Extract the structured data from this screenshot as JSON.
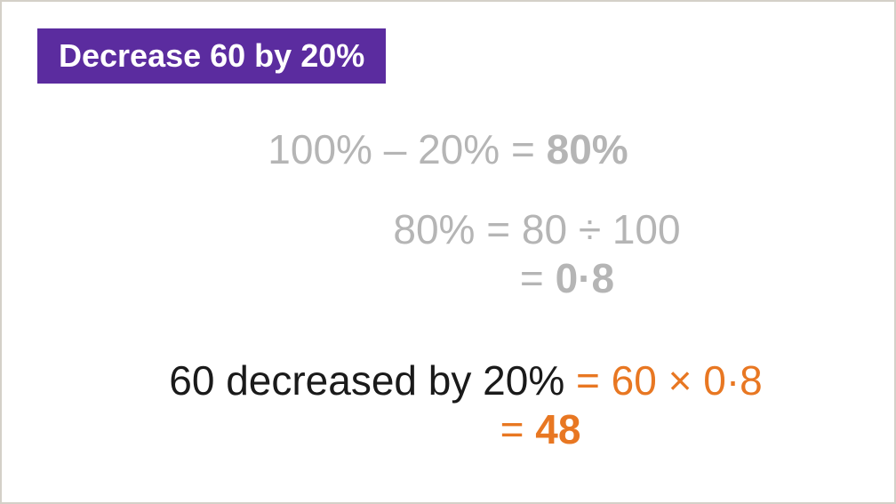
{
  "colors": {
    "title_bg": "#5b2c9f",
    "title_text": "#ffffff",
    "faded": "#b5b5b5",
    "main_text": "#1a1a1a",
    "accent": "#e87722",
    "page_bg": "#ffffff",
    "outer_bg": "#d4d0c8"
  },
  "typography": {
    "title_fontsize": 36,
    "equation_fontsize": 46,
    "font_family": "Arial, Helvetica, sans-serif"
  },
  "title": "Decrease 60 by 20%",
  "step1": {
    "lhs": "100% – 20% ",
    "rhs": "= ",
    "result": "80%",
    "color": "faded",
    "result_bold": true
  },
  "step2a": {
    "lhs": "80% ",
    "rhs": "= 80 ÷ 100",
    "color": "faded"
  },
  "step2b": {
    "equals": "= ",
    "result": "0·8",
    "color": "faded",
    "result_bold": true
  },
  "step3a": {
    "lhs": "60 decreased by 20% ",
    "lhs_color": "main_text",
    "equals": "= ",
    "rhs": "60 × 0·8",
    "rhs_color": "accent"
  },
  "step3b": {
    "equals": "= ",
    "result": "48",
    "color": "accent",
    "result_bold": true
  }
}
